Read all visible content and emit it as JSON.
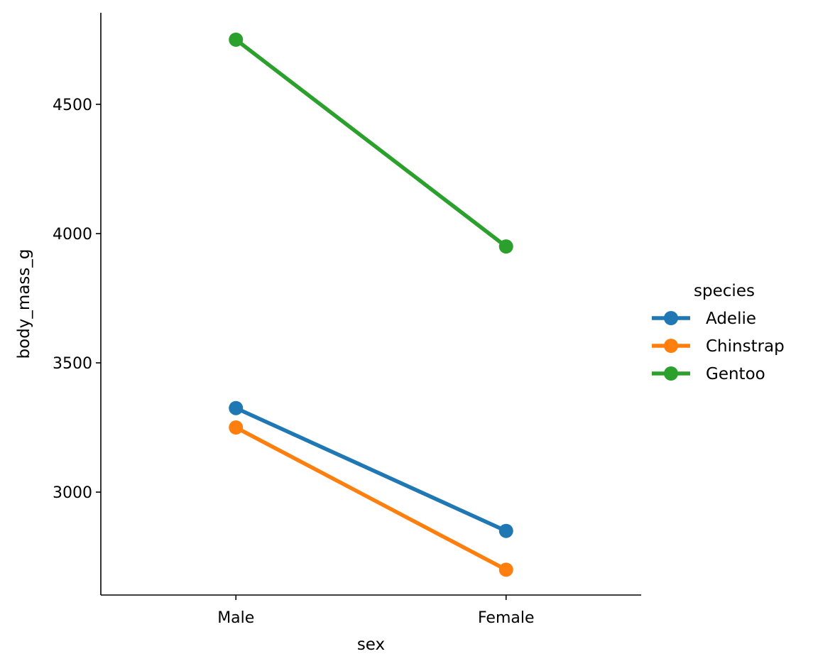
{
  "chart_data": {
    "type": "line",
    "title": "",
    "xlabel": "sex",
    "ylabel": "body_mass_g",
    "categories": [
      "Male",
      "Female"
    ],
    "xlim": [
      -0.5,
      1.5
    ],
    "ylim": [
      2602,
      4854
    ],
    "yticks": [
      3000,
      3500,
      4000,
      4500
    ],
    "ytick_labels": [
      "3000",
      "3500",
      "4000",
      "4500"
    ],
    "grid": false,
    "legend": {
      "title": "species",
      "placement": "right"
    },
    "series": [
      {
        "name": "Adelie",
        "color": "#1f77b4",
        "values": [
          3325,
          2850
        ]
      },
      {
        "name": "Chinstrap",
        "color": "#ff7f0e",
        "values": [
          3250,
          2700
        ]
      },
      {
        "name": "Gentoo",
        "color": "#2ca02c",
        "values": [
          4750,
          3950
        ]
      }
    ]
  }
}
